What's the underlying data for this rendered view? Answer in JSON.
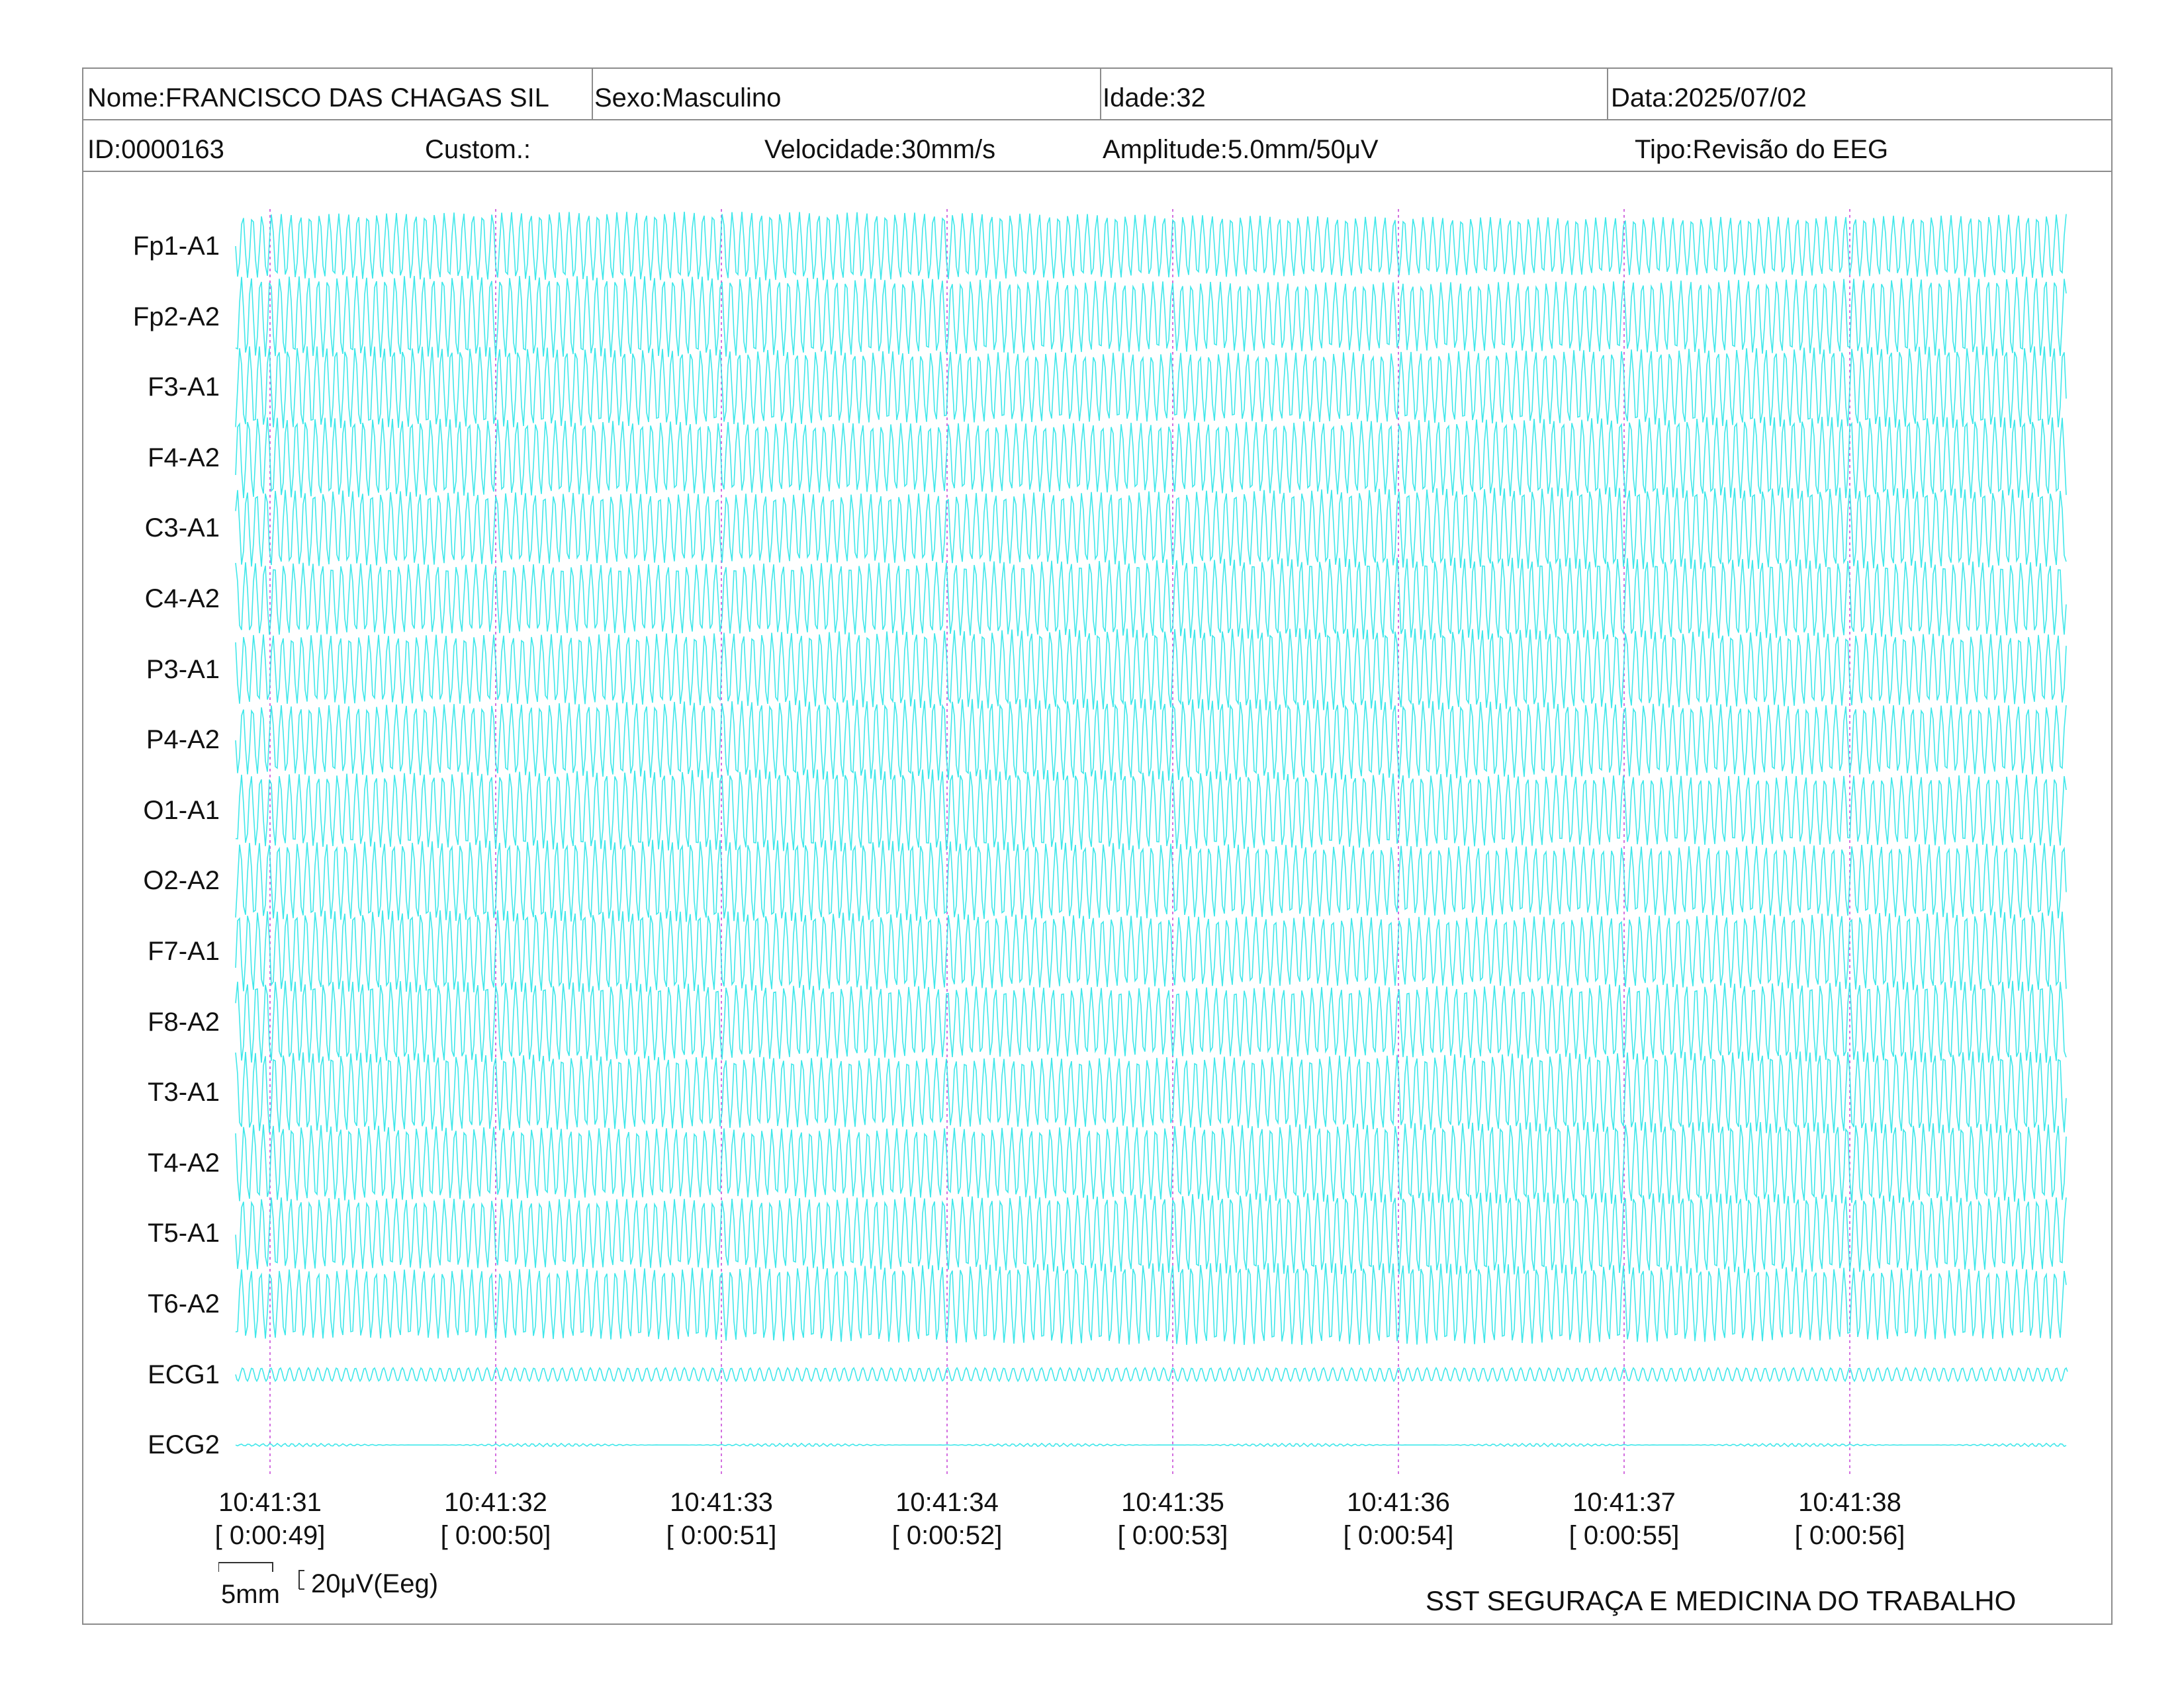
{
  "header": {
    "name": "Nome:FRANCISCO DAS CHAGAS SIL",
    "sex": "Sexo:Masculino",
    "age": "Idade:32",
    "date": "Data:2025/07/02",
    "id": "ID:0000163",
    "custom": "Custom.:",
    "speed": "Velocidade:30mm/s",
    "amplitude": "Amplitude:5.0mm/50μV",
    "type": "Tipo:Revisão do EEG"
  },
  "channels": [
    "Fp1-A1",
    "Fp2-A2",
    "F3-A1",
    "F4-A2",
    "C3-A1",
    "C4-A2",
    "P3-A1",
    "P4-A2",
    "O1-A1",
    "O2-A2",
    "F7-A1",
    "F8-A2",
    "T3-A1",
    "T4-A2",
    "T5-A1",
    "T6-A2",
    "ECG1",
    "ECG2"
  ],
  "time_markers": [
    {
      "clock": "10:41:31",
      "elapsed": "[ 0:00:49]"
    },
    {
      "clock": "10:41:32",
      "elapsed": "[ 0:00:50]"
    },
    {
      "clock": "10:41:33",
      "elapsed": "[ 0:00:51]"
    },
    {
      "clock": "10:41:34",
      "elapsed": "[ 0:00:52]"
    },
    {
      "clock": "10:41:35",
      "elapsed": "[ 0:00:53]"
    },
    {
      "clock": "10:41:36",
      "elapsed": "[ 0:00:54]"
    },
    {
      "clock": "10:41:37",
      "elapsed": "[ 0:00:55]"
    },
    {
      "clock": "10:41:38",
      "elapsed": "[ 0:00:56]"
    }
  ],
  "scale": {
    "time_label": "5mm",
    "amp_label": "20μV(Eeg)"
  },
  "footer": "SST SEGURAÇA E MEDICINA DO TRABALHO",
  "colors": {
    "trace": "#1fe3e6",
    "marker": "#d36fe0",
    "border": "#8c8c8c"
  }
}
